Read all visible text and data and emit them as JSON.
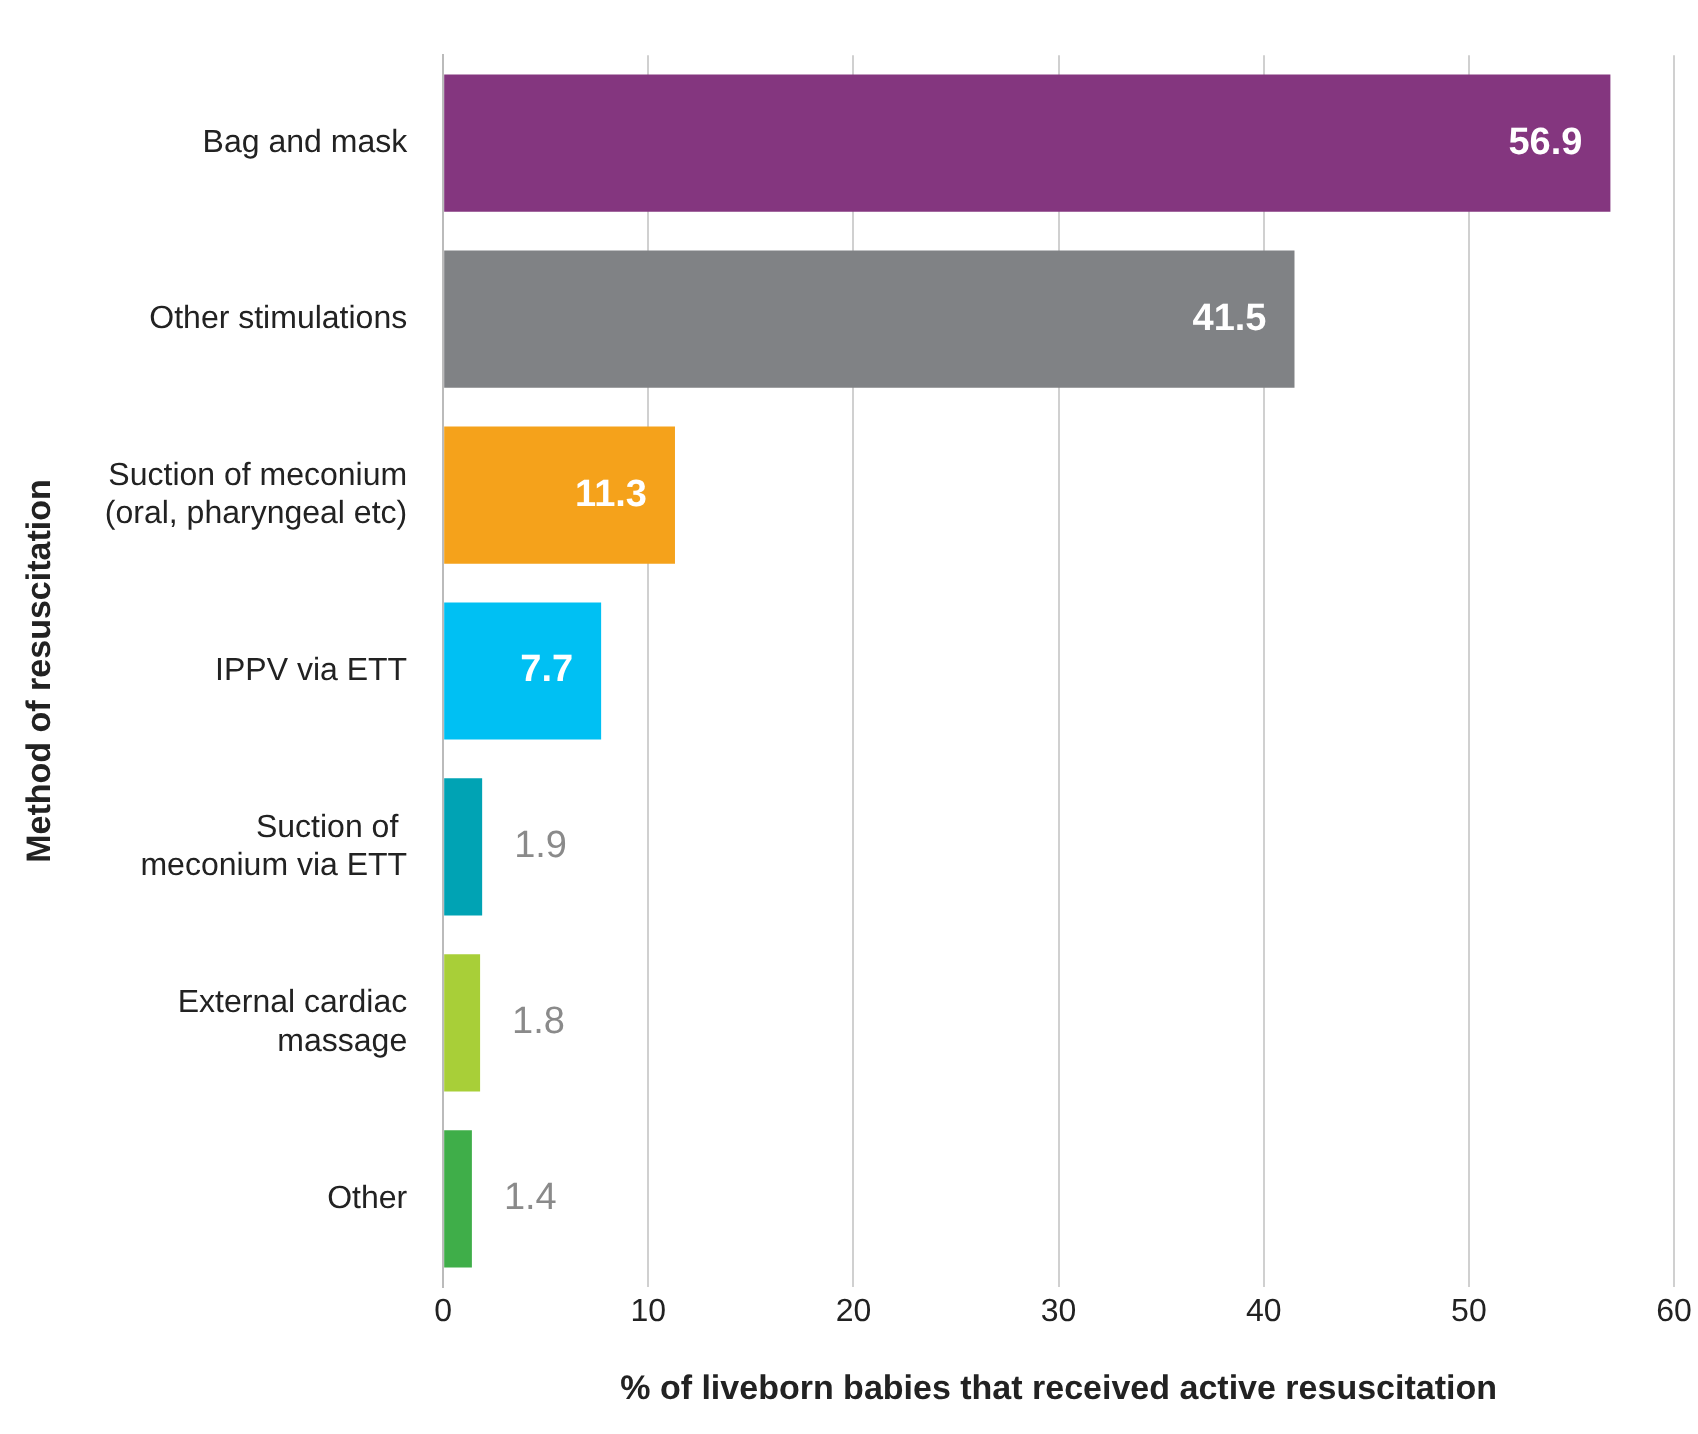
{
  "chart_data": {
    "type": "bar",
    "orientation": "horizontal",
    "xlabel": "% of liveborn babies that received active resuscitation",
    "ylabel": "Method of resuscitation",
    "categories": [
      "Bag and mask",
      "Other stimulations",
      "Suction of meconium\n(oral, pharyngeal etc)",
      "IPPV via ETT",
      "Suction of \nmeconium via ETT",
      "External cardiac\nmassage",
      "Other"
    ],
    "values": [
      56.9,
      41.5,
      11.3,
      7.7,
      1.9,
      1.8,
      1.4
    ],
    "colors": [
      "#84367f",
      "#808285",
      "#f5a21b",
      "#00c0f3",
      "#00a3b4",
      "#a8cf38",
      "#3fae49"
    ],
    "xlim": [
      0,
      60
    ],
    "xticks": [
      0,
      10,
      20,
      30,
      40,
      50,
      60
    ],
    "grid": "x",
    "data_labels": true,
    "legend": false
  }
}
